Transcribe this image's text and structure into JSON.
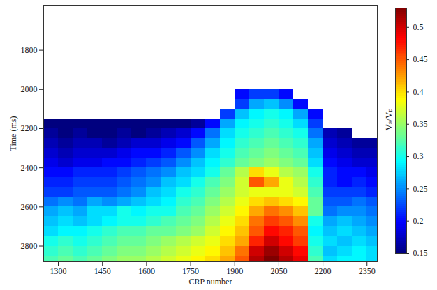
{
  "chart_data": {
    "type": "heatmap",
    "x_label": "CRP number",
    "y_label": "Time (ms)",
    "xlim": [
      1250,
      2385
    ],
    "ylim": [
      1570,
      2880
    ],
    "xticks": [
      1300,
      1450,
      1600,
      1750,
      1900,
      2050,
      2200,
      2350
    ],
    "yticks": [
      1800,
      2000,
      2200,
      2400,
      2600,
      2800
    ],
    "cells": {
      "x_edges": [
        1250,
        1300,
        1350,
        1400,
        1450,
        1500,
        1550,
        1600,
        1650,
        1700,
        1750,
        1800,
        1850,
        1900,
        1950,
        2000,
        2050,
        2100,
        2150,
        2200,
        2250,
        2300,
        2350,
        2400
      ],
      "y_edges": [
        1950,
        2000,
        2050,
        2100,
        2150,
        2200,
        2250,
        2300,
        2350,
        2400,
        2450,
        2500,
        2550,
        2600,
        2650,
        2700,
        2750,
        2800,
        2850,
        2900
      ],
      "values": [
        [
          null,
          null,
          null,
          null,
          null,
          null,
          null,
          null,
          null,
          null,
          null,
          null,
          null,
          null,
          null,
          null,
          null,
          null,
          null,
          null,
          null,
          null,
          null
        ],
        [
          null,
          null,
          null,
          null,
          null,
          null,
          null,
          null,
          null,
          null,
          null,
          null,
          null,
          0.2,
          0.22,
          0.22,
          0.2,
          null,
          null,
          null,
          null,
          null,
          null
        ],
        [
          null,
          null,
          null,
          null,
          null,
          null,
          null,
          null,
          null,
          null,
          null,
          null,
          null,
          0.22,
          0.26,
          0.27,
          0.25,
          0.2,
          null,
          null,
          null,
          null,
          null
        ],
        [
          null,
          null,
          null,
          null,
          null,
          null,
          null,
          null,
          null,
          null,
          null,
          null,
          0.22,
          0.27,
          0.29,
          0.3,
          0.29,
          0.26,
          0.2,
          null,
          null,
          null,
          null
        ],
        [
          0.15,
          0.15,
          0.15,
          0.15,
          0.15,
          0.15,
          0.15,
          0.15,
          0.15,
          0.15,
          0.16,
          0.2,
          0.26,
          0.29,
          0.3,
          0.31,
          0.3,
          0.28,
          0.22,
          null,
          null,
          null,
          null
        ],
        [
          0.16,
          0.15,
          0.16,
          0.15,
          0.15,
          0.16,
          0.15,
          0.16,
          0.17,
          0.18,
          0.2,
          0.24,
          0.28,
          0.3,
          0.31,
          0.32,
          0.31,
          0.3,
          0.24,
          0.17,
          0.16,
          null,
          null
        ],
        [
          0.17,
          0.16,
          0.17,
          0.17,
          0.16,
          0.17,
          0.18,
          0.18,
          0.19,
          0.2,
          0.23,
          0.26,
          0.29,
          0.31,
          0.32,
          0.33,
          0.32,
          0.31,
          0.26,
          0.18,
          0.17,
          0.16,
          0.16
        ],
        [
          0.18,
          0.17,
          0.18,
          0.18,
          0.18,
          0.19,
          0.2,
          0.2,
          0.21,
          0.23,
          0.25,
          0.28,
          0.3,
          0.32,
          0.33,
          0.34,
          0.33,
          0.32,
          0.27,
          0.19,
          0.18,
          0.17,
          0.17
        ],
        [
          0.19,
          0.18,
          0.19,
          0.19,
          0.2,
          0.2,
          0.21,
          0.22,
          0.23,
          0.25,
          0.27,
          0.29,
          0.31,
          0.33,
          0.34,
          0.35,
          0.34,
          0.33,
          0.28,
          0.2,
          0.19,
          0.18,
          0.18
        ],
        [
          0.2,
          0.2,
          0.21,
          0.21,
          0.21,
          0.22,
          0.23,
          0.24,
          0.25,
          0.27,
          0.28,
          0.3,
          0.33,
          0.36,
          0.4,
          0.38,
          0.36,
          0.35,
          0.3,
          0.21,
          0.2,
          0.2,
          0.19
        ],
        [
          0.21,
          0.21,
          0.22,
          0.22,
          0.22,
          0.23,
          0.24,
          0.25,
          0.27,
          0.28,
          0.3,
          0.32,
          0.34,
          0.37,
          0.45,
          0.42,
          0.38,
          0.36,
          0.31,
          0.21,
          0.2,
          0.21,
          0.2
        ],
        [
          0.22,
          0.22,
          0.23,
          0.23,
          0.23,
          0.24,
          0.25,
          0.27,
          0.28,
          0.3,
          0.31,
          0.33,
          0.35,
          0.37,
          0.38,
          0.38,
          0.38,
          0.37,
          0.32,
          0.22,
          0.22,
          0.22,
          0.21
        ],
        [
          0.24,
          0.25,
          0.24,
          0.26,
          0.25,
          0.26,
          0.27,
          0.28,
          0.29,
          0.31,
          0.32,
          0.34,
          0.36,
          0.38,
          0.4,
          0.41,
          0.4,
          0.39,
          0.33,
          0.23,
          0.23,
          0.24,
          0.23
        ],
        [
          0.26,
          0.27,
          0.26,
          0.28,
          0.28,
          0.3,
          0.29,
          0.3,
          0.3,
          0.32,
          0.33,
          0.35,
          0.37,
          0.39,
          0.42,
          0.44,
          0.43,
          0.41,
          0.33,
          0.24,
          0.25,
          0.25,
          0.24
        ],
        [
          0.27,
          0.28,
          0.27,
          0.28,
          0.29,
          0.3,
          0.3,
          0.31,
          0.32,
          0.33,
          0.34,
          0.36,
          0.38,
          0.4,
          0.44,
          0.46,
          0.45,
          0.43,
          0.3,
          0.26,
          0.27,
          0.26,
          0.25
        ],
        [
          0.28,
          0.29,
          0.29,
          0.3,
          0.31,
          0.32,
          0.32,
          0.33,
          0.33,
          0.34,
          0.35,
          0.37,
          0.39,
          0.41,
          0.45,
          0.48,
          0.47,
          0.45,
          0.29,
          0.27,
          0.28,
          0.27,
          0.26
        ],
        [
          0.3,
          0.31,
          0.3,
          0.31,
          0.32,
          0.33,
          0.33,
          0.34,
          0.35,
          0.36,
          0.37,
          0.38,
          0.4,
          0.42,
          0.47,
          0.5,
          0.48,
          0.46,
          0.3,
          0.28,
          0.27,
          0.28,
          0.27
        ],
        [
          0.31,
          0.32,
          0.31,
          0.32,
          0.33,
          0.34,
          0.34,
          0.35,
          0.36,
          0.37,
          0.38,
          0.39,
          0.41,
          0.44,
          0.5,
          0.52,
          0.5,
          0.48,
          0.31,
          0.27,
          0.28,
          0.29,
          0.28
        ],
        [
          0.32,
          0.33,
          0.32,
          0.33,
          0.34,
          0.35,
          0.35,
          0.36,
          0.37,
          0.38,
          0.39,
          0.4,
          0.42,
          0.45,
          0.51,
          0.53,
          0.51,
          0.49,
          0.32,
          0.28,
          0.29,
          0.29,
          0.28
        ]
      ]
    },
    "colorbar": {
      "label": "Vₛ/Vₚ",
      "range": [
        0.15,
        0.53
      ],
      "ticks": [
        0.15,
        0.2,
        0.25,
        0.3,
        0.35,
        0.4,
        0.45,
        0.5
      ]
    }
  }
}
